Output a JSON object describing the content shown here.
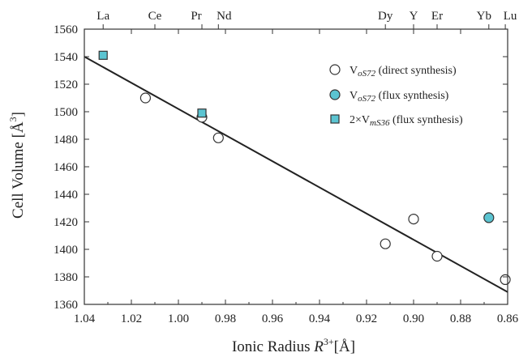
{
  "chart_data": {
    "type": "scatter",
    "title": "",
    "xlabel": {
      "prefix": "Ionic Radius ",
      "symbol": "R",
      "sup": "3+",
      "suffix": "[Å]"
    },
    "ylabel": {
      "prefix": "Cell Volume [Å",
      "sup": "3",
      "suffix": "]"
    },
    "xlim": [
      1.04,
      0.86
    ],
    "ylim": [
      1360,
      1560
    ],
    "x_reversed": true,
    "grid": false,
    "legend_position": "top-right",
    "x_ticks": [
      "1.04",
      "1.02",
      "1.00",
      "0.98",
      "0.96",
      "0.94",
      "0.92",
      "0.90",
      "0.88",
      "0.86"
    ],
    "y_ticks": [
      "1360",
      "1380",
      "1400",
      "1420",
      "1440",
      "1460",
      "1480",
      "1500",
      "1520",
      "1540",
      "1560"
    ],
    "top_axis": [
      {
        "label": "La",
        "x": 1.032
      },
      {
        "label": "Ce",
        "x": 1.01
      },
      {
        "label": "Pr",
        "x": 0.99
      },
      {
        "label": "Nd",
        "x": 0.983
      },
      {
        "label": "Dy",
        "x": 0.912
      },
      {
        "label": "Y",
        "x": 0.9
      },
      {
        "label": "Er",
        "x": 0.89
      },
      {
        "label": "Yb",
        "x": 0.868
      },
      {
        "label": "Lu",
        "x": 0.861
      }
    ],
    "series": [
      {
        "name": "direct synthesis",
        "legend": {
          "base": "V",
          "sub": "oS72",
          "rest": " (direct synthesis)"
        },
        "marker": "circle-open",
        "color": "#ffffff",
        "points": [
          {
            "x": 1.014,
            "y": 1510
          },
          {
            "x": 0.99,
            "y": 1496
          },
          {
            "x": 0.983,
            "y": 1481
          },
          {
            "x": 0.912,
            "y": 1404
          },
          {
            "x": 0.9,
            "y": 1422
          },
          {
            "x": 0.89,
            "y": 1395
          },
          {
            "x": 0.861,
            "y": 1378
          }
        ]
      },
      {
        "name": "flux synthesis",
        "legend": {
          "base": "V",
          "sub": "oS72",
          "rest": " (flux synthesis)"
        },
        "marker": "circle-filled",
        "color": "#5bc4d1",
        "points": [
          {
            "x": 0.868,
            "y": 1423
          }
        ]
      },
      {
        "name": "2×VmS36 flux synthesis",
        "legend": {
          "base": "2×V",
          "sub": "mS36",
          "rest": " (flux synthesis)"
        },
        "marker": "square-filled",
        "color": "#5bc4d1",
        "points": [
          {
            "x": 1.032,
            "y": 1541
          },
          {
            "x": 0.99,
            "y": 1499
          }
        ]
      }
    ],
    "fit_line": {
      "x": [
        1.04,
        0.86
      ],
      "y": [
        1540,
        1369
      ]
    }
  }
}
